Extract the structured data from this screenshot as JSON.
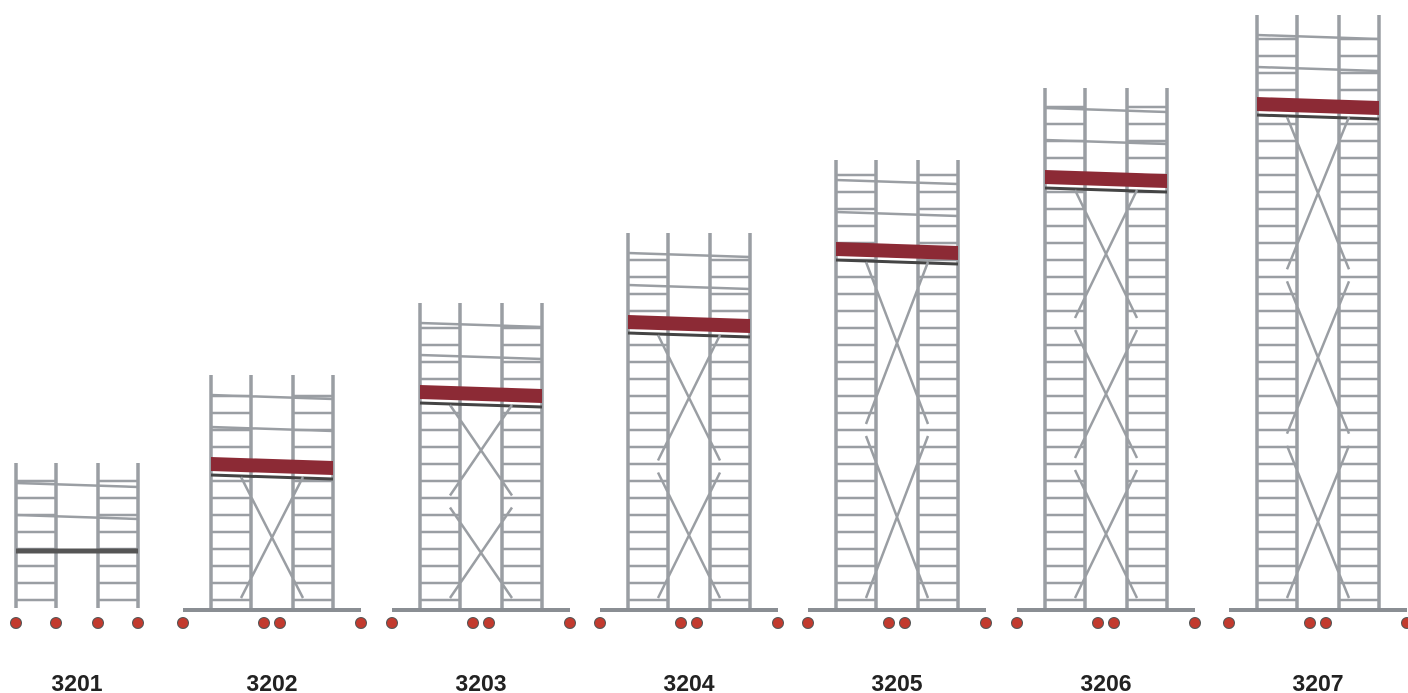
{
  "labels": [
    "3201",
    "3202",
    "3203",
    "3204",
    "3205",
    "3206",
    "3207"
  ]
}
